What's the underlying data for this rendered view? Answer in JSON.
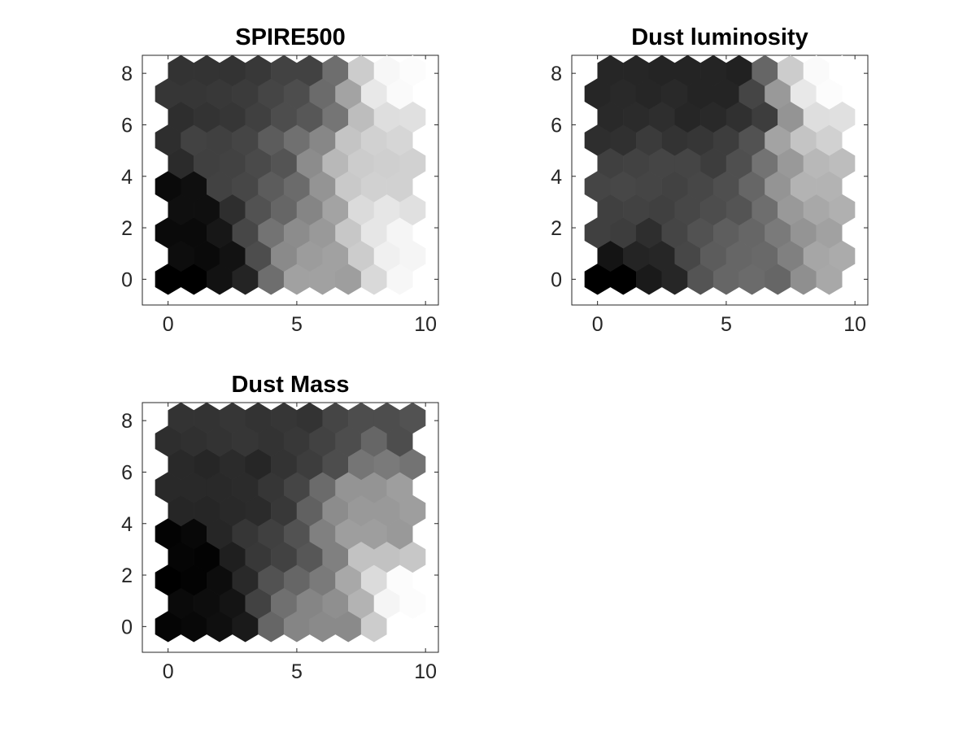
{
  "chart_data": [
    {
      "type": "heatmap",
      "title": "SPIRE500",
      "xlim": [
        -1,
        10.5
      ],
      "ylim": [
        -1,
        8.7
      ],
      "xticks": [
        0,
        5,
        10
      ],
      "yticks": [
        0,
        2,
        4,
        6,
        8
      ],
      "grid": false,
      "colormap": "gray",
      "value_range": [
        0,
        1
      ],
      "rows": 10,
      "cols": 10,
      "values": [
        [
          0.0,
          0.0,
          0.07,
          0.14,
          0.43,
          0.63,
          0.63,
          0.62,
          0.85,
          0.97
        ],
        [
          0.05,
          0.04,
          0.07,
          0.3,
          0.54,
          0.61,
          0.63,
          0.8,
          0.94,
          0.96
        ],
        [
          0.04,
          0.04,
          0.09,
          0.28,
          0.45,
          0.55,
          0.6,
          0.78,
          0.9,
          0.96
        ],
        [
          0.06,
          0.06,
          0.18,
          0.32,
          0.4,
          0.52,
          0.64,
          0.86,
          0.9,
          0.88
        ],
        [
          0.04,
          0.06,
          0.26,
          0.28,
          0.36,
          0.42,
          0.58,
          0.79,
          0.82,
          0.82
        ],
        [
          0.17,
          0.25,
          0.26,
          0.29,
          0.33,
          0.55,
          0.72,
          0.8,
          0.81,
          0.82
        ],
        [
          0.18,
          0.26,
          0.25,
          0.27,
          0.36,
          0.44,
          0.53,
          0.77,
          0.82,
          0.84
        ],
        [
          0.18,
          0.2,
          0.21,
          0.25,
          0.3,
          0.34,
          0.46,
          0.74,
          0.87,
          0.88
        ],
        [
          0.21,
          0.21,
          0.22,
          0.23,
          0.27,
          0.3,
          0.42,
          0.64,
          0.91,
          0.98
        ],
        [
          0.2,
          0.2,
          0.2,
          0.22,
          0.26,
          0.26,
          0.43,
          0.8,
          0.97,
          0.99
        ]
      ]
    },
    {
      "type": "heatmap",
      "title": "Dust luminosity",
      "xlim": [
        -1,
        10.5
      ],
      "ylim": [
        -1,
        8.7
      ],
      "xticks": [
        0,
        5,
        10
      ],
      "yticks": [
        0,
        2,
        4,
        6,
        8
      ],
      "grid": false,
      "colormap": "gray",
      "value_range": [
        0,
        1
      ],
      "rows": 10,
      "cols": 10,
      "values": [
        [
          0.0,
          0.0,
          0.1,
          0.15,
          0.33,
          0.4,
          0.42,
          0.4,
          0.56,
          0.66
        ],
        [
          0.08,
          0.14,
          0.15,
          0.28,
          0.36,
          0.4,
          0.41,
          0.5,
          0.65,
          0.67
        ],
        [
          0.25,
          0.24,
          0.18,
          0.27,
          0.32,
          0.37,
          0.4,
          0.48,
          0.58,
          0.63
        ],
        [
          0.25,
          0.26,
          0.25,
          0.28,
          0.3,
          0.33,
          0.43,
          0.6,
          0.66,
          0.69
        ],
        [
          0.27,
          0.28,
          0.27,
          0.26,
          0.28,
          0.31,
          0.4,
          0.58,
          0.7,
          0.7
        ],
        [
          0.25,
          0.26,
          0.27,
          0.27,
          0.24,
          0.31,
          0.45,
          0.6,
          0.72,
          0.74
        ],
        [
          0.18,
          0.19,
          0.23,
          0.2,
          0.21,
          0.24,
          0.32,
          0.64,
          0.77,
          0.82
        ],
        [
          0.16,
          0.17,
          0.18,
          0.15,
          0.16,
          0.19,
          0.24,
          0.58,
          0.87,
          0.88
        ],
        [
          0.15,
          0.16,
          0.15,
          0.16,
          0.14,
          0.14,
          0.27,
          0.6,
          0.91,
          0.99
        ],
        [
          0.15,
          0.15,
          0.14,
          0.14,
          0.14,
          0.13,
          0.4,
          0.8,
          0.98,
          1.0
        ]
      ]
    },
    {
      "type": "heatmap",
      "title": "Dust Mass",
      "xlim": [
        -1,
        10.5
      ],
      "ylim": [
        -1,
        8.7
      ],
      "xticks": [
        0,
        5,
        10
      ],
      "yticks": [
        0,
        2,
        4,
        6,
        8
      ],
      "grid": false,
      "colormap": "gray",
      "value_range": [
        0,
        1
      ],
      "rows": 10,
      "cols": 10,
      "values": [
        [
          0.02,
          0.03,
          0.06,
          0.1,
          0.4,
          0.52,
          0.54,
          0.54,
          0.8,
          1.0
        ],
        [
          0.04,
          0.05,
          0.08,
          0.26,
          0.44,
          0.52,
          0.56,
          0.7,
          0.96,
          0.99
        ],
        [
          0.0,
          0.01,
          0.05,
          0.16,
          0.32,
          0.4,
          0.48,
          0.66,
          0.86,
          0.99
        ],
        [
          0.02,
          0.01,
          0.12,
          0.22,
          0.26,
          0.34,
          0.5,
          0.76,
          0.76,
          0.78
        ],
        [
          0.01,
          0.03,
          0.15,
          0.21,
          0.25,
          0.32,
          0.5,
          0.62,
          0.62,
          0.6
        ],
        [
          0.15,
          0.15,
          0.16,
          0.17,
          0.22,
          0.38,
          0.55,
          0.6,
          0.6,
          0.62
        ],
        [
          0.16,
          0.16,
          0.16,
          0.17,
          0.21,
          0.27,
          0.42,
          0.58,
          0.58,
          0.62
        ],
        [
          0.16,
          0.15,
          0.17,
          0.15,
          0.2,
          0.24,
          0.3,
          0.46,
          0.48,
          0.45
        ],
        [
          0.18,
          0.19,
          0.2,
          0.21,
          0.2,
          0.22,
          0.26,
          0.3,
          0.4,
          0.3
        ],
        [
          0.2,
          0.2,
          0.21,
          0.2,
          0.21,
          0.2,
          0.27,
          0.3,
          0.3,
          0.32
        ]
      ]
    }
  ]
}
